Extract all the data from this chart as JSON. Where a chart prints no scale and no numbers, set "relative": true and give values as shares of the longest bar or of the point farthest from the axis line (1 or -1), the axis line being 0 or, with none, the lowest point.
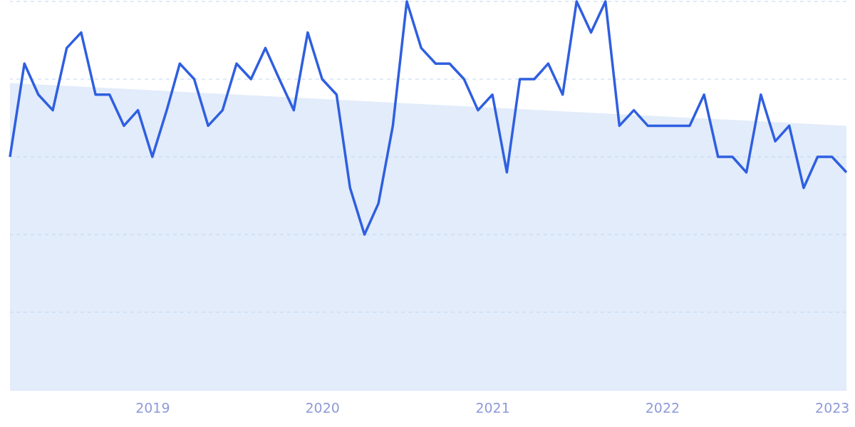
{
  "chart_data": {
    "type": "line",
    "relative": true,
    "x": [
      "2018-03",
      "2018-04",
      "2018-05",
      "2018-06",
      "2018-07",
      "2018-08",
      "2018-09",
      "2018-10",
      "2018-11",
      "2018-12",
      "2019-01",
      "2019-02",
      "2019-03",
      "2019-04",
      "2019-05",
      "2019-06",
      "2019-07",
      "2019-08",
      "2019-09",
      "2019-10",
      "2019-11",
      "2019-12",
      "2020-01",
      "2020-02",
      "2020-03",
      "2020-04",
      "2020-05",
      "2020-06",
      "2020-07",
      "2020-08",
      "2020-09",
      "2020-10",
      "2020-11",
      "2020-12",
      "2021-01",
      "2021-02",
      "2021-03",
      "2021-04",
      "2021-05",
      "2021-06",
      "2021-07",
      "2021-08",
      "2021-09",
      "2021-10",
      "2021-11",
      "2021-12",
      "2022-01",
      "2022-02",
      "2022-03",
      "2022-04",
      "2022-05",
      "2022-06",
      "2022-07",
      "2022-08",
      "2022-09",
      "2022-10",
      "2022-11",
      "2022-12",
      "2023-01",
      "2023-02"
    ],
    "series": [
      {
        "type": "area",
        "color": "#dfeafa",
        "x": [
          "2018-03",
          "2023-02"
        ],
        "values": [
          0.79,
          0.68
        ]
      },
      {
        "color": "#2f5fe0",
        "values": [
          0.6,
          0.84,
          0.76,
          0.72,
          0.88,
          0.92,
          0.76,
          0.76,
          0.68,
          0.72,
          0.6,
          0.72,
          0.84,
          0.8,
          0.68,
          0.72,
          0.84,
          0.8,
          0.88,
          0.8,
          0.72,
          0.92,
          0.8,
          0.76,
          0.52,
          0.4,
          0.48,
          0.68,
          1,
          0.88,
          0.84,
          0.84,
          0.8,
          0.72,
          0.76,
          0.56,
          0.8,
          0.8,
          0.84,
          0.76,
          1,
          0.92,
          1,
          0.68,
          0.72,
          0.68,
          0.68,
          0.68,
          0.68,
          0.76,
          0.6,
          0.6,
          0.56,
          0.76,
          0.64,
          0.68,
          0.52,
          0.6,
          0.6,
          0.56
        ]
      }
    ],
    "xlim": [
      "2018-03",
      "2023-02"
    ],
    "xticks": [
      "2019",
      "2020",
      "2021",
      "2022",
      "2023"
    ],
    "ref_lines": [
      {
        "axis": "y",
        "value": 0.2,
        "color": "#bfd6f2",
        "line_style": "dashed"
      },
      {
        "axis": "y",
        "value": 0.4,
        "color": "#bfd6f2",
        "line_style": "dashed"
      },
      {
        "axis": "y",
        "value": 0.6,
        "color": "#bfd6f2",
        "line_style": "dashed"
      },
      {
        "axis": "y",
        "value": 0.8,
        "color": "#bfd6f2",
        "line_style": "dashed"
      },
      {
        "axis": "y",
        "value": 1,
        "color": "#bfd6f2",
        "line_style": "dashed"
      }
    ],
    "line_style": "solid",
    "marker": "none"
  }
}
